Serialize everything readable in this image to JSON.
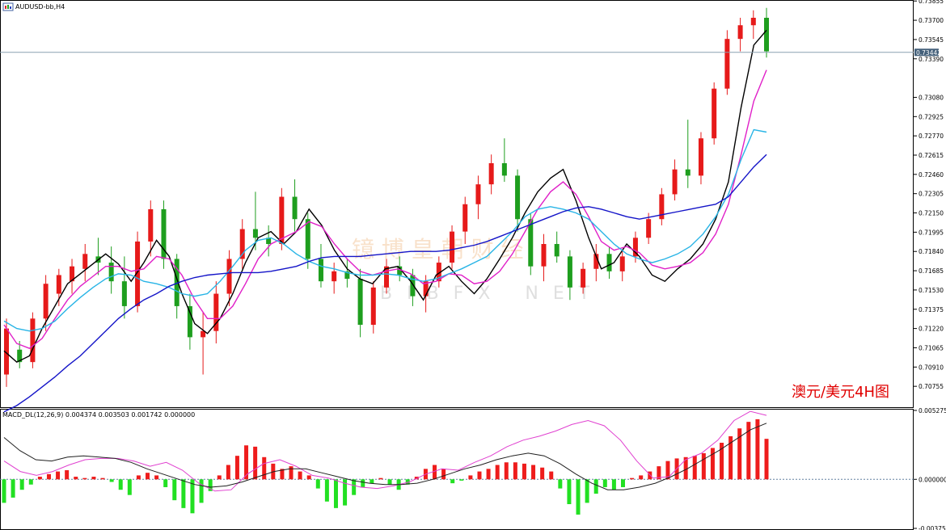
{
  "window": {
    "title": "AUDUSD-bb,H4"
  },
  "macd": {
    "title": "MACD_DL(12,26,9) 0.004374 0.003503 0.001742 0.000000"
  },
  "annotation": "澳元/美元4H图",
  "watermark": {
    "cn": "镱 博 皇 朝 财 经",
    "en": "BIBFX NET"
  },
  "price_marker": {
    "label": "0.73442",
    "value": 0.73442
  },
  "colors": {
    "bull": "#e61a1a",
    "bear": "#1e9e1e",
    "black_ma": "#000000",
    "magenta_ma": "#e020c8",
    "cyan_ma": "#28b4e6",
    "blue_ma": "#1414c8",
    "hist_pos": "#ee1c1c",
    "hist_neg": "#22e022",
    "signal": "#e040d0",
    "macd_line": "#202020"
  },
  "chart_data": [
    {
      "type": "candlestick",
      "title": "AUDUSD-bb,H4",
      "ylim": [
        0.706,
        0.7385
      ],
      "yticks": [
        "0.73855",
        "0.73700",
        "0.73545",
        "0.73390",
        "0.73080",
        "0.72925",
        "0.72770",
        "0.72615",
        "0.72460",
        "0.72305",
        "0.72150",
        "0.71995",
        "0.71840",
        "0.71685",
        "0.71530",
        "0.71375",
        "0.71220",
        "0.71065",
        "0.70910",
        "0.70755"
      ],
      "series": [
        {
          "name": "black",
          "values": [
            0.7104,
            0.7095,
            0.71,
            0.7122,
            0.714,
            0.7158,
            0.7166,
            0.7174,
            0.7182,
            0.7174,
            0.716,
            0.7175,
            0.7193,
            0.718,
            0.715,
            0.7126,
            0.7118,
            0.713,
            0.715,
            0.7175,
            0.7195,
            0.72,
            0.719,
            0.72,
            0.7218,
            0.7205,
            0.7185,
            0.717,
            0.7162,
            0.7158,
            0.717,
            0.7172,
            0.716,
            0.7145,
            0.7165,
            0.7172,
            0.716,
            0.715,
            0.7162,
            0.7178,
            0.7195,
            0.7215,
            0.7232,
            0.7243,
            0.725,
            0.7225,
            0.7195,
            0.717,
            0.7175,
            0.719,
            0.718,
            0.7165,
            0.716,
            0.717,
            0.7178,
            0.719,
            0.721,
            0.724,
            0.73,
            0.735,
            0.7362
          ]
        },
        {
          "name": "magenta",
          "values": [
            0.7125,
            0.711,
            0.7106,
            0.7114,
            0.713,
            0.7145,
            0.7156,
            0.7164,
            0.7172,
            0.7172,
            0.7168,
            0.717,
            0.718,
            0.7178,
            0.7165,
            0.7145,
            0.713,
            0.713,
            0.714,
            0.7158,
            0.7178,
            0.719,
            0.7195,
            0.72,
            0.7208,
            0.7204,
            0.719,
            0.7178,
            0.7168,
            0.7165,
            0.7168,
            0.717,
            0.7166,
            0.7158,
            0.716,
            0.7166,
            0.7165,
            0.7158,
            0.716,
            0.7168,
            0.7182,
            0.72,
            0.7218,
            0.7232,
            0.724,
            0.723,
            0.7212,
            0.7192,
            0.7185,
            0.7188,
            0.7183,
            0.7173,
            0.717,
            0.7172,
            0.7175,
            0.7183,
            0.7198,
            0.7222,
            0.7262,
            0.7305,
            0.733
          ]
        },
        {
          "name": "cyan",
          "values": [
            0.7128,
            0.7122,
            0.712,
            0.7122,
            0.7128,
            0.7138,
            0.7147,
            0.7155,
            0.7162,
            0.7166,
            0.7165,
            0.716,
            0.7158,
            0.7155,
            0.715,
            0.7148,
            0.715,
            0.716,
            0.7172,
            0.7185,
            0.7193,
            0.7195,
            0.719,
            0.7182,
            0.7176,
            0.7172,
            0.717,
            0.7167,
            0.7165,
            0.7165,
            0.7166,
            0.7165,
            0.7162,
            0.716,
            0.7162,
            0.7166,
            0.717,
            0.7175,
            0.718,
            0.719,
            0.72,
            0.7212,
            0.7218,
            0.722,
            0.7218,
            0.7215,
            0.721,
            0.72,
            0.719,
            0.7182,
            0.7178,
            0.7175,
            0.7178,
            0.7182,
            0.7188,
            0.7198,
            0.7212,
            0.723,
            0.7258,
            0.7282,
            0.728
          ]
        },
        {
          "name": "blue",
          "values": [
            0.7055,
            0.706,
            0.7067,
            0.7075,
            0.7083,
            0.7092,
            0.71,
            0.711,
            0.712,
            0.713,
            0.7138,
            0.7145,
            0.715,
            0.7156,
            0.716,
            0.7163,
            0.7165,
            0.7166,
            0.7167,
            0.7167,
            0.7167,
            0.7168,
            0.717,
            0.7172,
            0.7176,
            0.7179,
            0.718,
            0.718,
            0.718,
            0.7181,
            0.7182,
            0.7183,
            0.7184,
            0.7184,
            0.7184,
            0.7185,
            0.7187,
            0.7189,
            0.7192,
            0.7196,
            0.72,
            0.7204,
            0.7208,
            0.7212,
            0.7216,
            0.7219,
            0.722,
            0.7218,
            0.7215,
            0.7212,
            0.721,
            0.7212,
            0.7214,
            0.7216,
            0.7218,
            0.722,
            0.7222,
            0.7228,
            0.724,
            0.7252,
            0.7262
          ]
        }
      ],
      "ohlc_sampled": [
        [
          0.7085,
          0.713,
          0.7075,
          0.7122
        ],
        [
          0.7105,
          0.7112,
          0.709,
          0.7095
        ],
        [
          0.7095,
          0.7135,
          0.709,
          0.713
        ],
        [
          0.713,
          0.7165,
          0.712,
          0.7158
        ],
        [
          0.715,
          0.717,
          0.714,
          0.7165
        ],
        [
          0.716,
          0.7178,
          0.715,
          0.7172
        ],
        [
          0.717,
          0.719,
          0.716,
          0.7182
        ],
        [
          0.718,
          0.7195,
          0.7165,
          0.7175
        ],
        [
          0.7175,
          0.7188,
          0.715,
          0.716
        ],
        [
          0.716,
          0.718,
          0.713,
          0.714
        ],
        [
          0.714,
          0.72,
          0.7135,
          0.7192
        ],
        [
          0.7192,
          0.7225,
          0.718,
          0.7218
        ],
        [
          0.7218,
          0.7225,
          0.717,
          0.7178
        ],
        [
          0.7178,
          0.7182,
          0.713,
          0.714
        ],
        [
          0.714,
          0.715,
          0.7105,
          0.7115
        ],
        [
          0.7115,
          0.7135,
          0.7085,
          0.712
        ],
        [
          0.712,
          0.716,
          0.711,
          0.715
        ],
        [
          0.715,
          0.7185,
          0.714,
          0.7178
        ],
        [
          0.7178,
          0.721,
          0.717,
          0.7202
        ],
        [
          0.7202,
          0.7232,
          0.7185,
          0.7195
        ],
        [
          0.7195,
          0.7205,
          0.718,
          0.719
        ],
        [
          0.719,
          0.7235,
          0.7185,
          0.7228
        ],
        [
          0.7228,
          0.7242,
          0.72,
          0.721
        ],
        [
          0.721,
          0.7215,
          0.717,
          0.7178
        ],
        [
          0.7178,
          0.719,
          0.7155,
          0.716
        ],
        [
          0.716,
          0.7175,
          0.715,
          0.7168
        ],
        [
          0.7168,
          0.7178,
          0.7155,
          0.7162
        ],
        [
          0.7162,
          0.717,
          0.7115,
          0.7125
        ],
        [
          0.7125,
          0.716,
          0.7118,
          0.7155
        ],
        [
          0.7155,
          0.7178,
          0.715,
          0.7172
        ],
        [
          0.7172,
          0.718,
          0.716,
          0.7165
        ],
        [
          0.7165,
          0.717,
          0.714,
          0.7148
        ],
        [
          0.7148,
          0.7165,
          0.7135,
          0.716
        ],
        [
          0.716,
          0.718,
          0.7155,
          0.7175
        ],
        [
          0.7175,
          0.7205,
          0.717,
          0.72
        ],
        [
          0.72,
          0.7228,
          0.719,
          0.7222
        ],
        [
          0.7222,
          0.7245,
          0.721,
          0.7238
        ],
        [
          0.7238,
          0.7262,
          0.723,
          0.7255
        ],
        [
          0.7255,
          0.7275,
          0.724,
          0.7245
        ],
        [
          0.7245,
          0.725,
          0.72,
          0.721
        ],
        [
          0.721,
          0.7215,
          0.7165,
          0.7172
        ],
        [
          0.7172,
          0.7198,
          0.716,
          0.719
        ],
        [
          0.719,
          0.72,
          0.7175,
          0.718
        ],
        [
          0.718,
          0.7185,
          0.7145,
          0.7155
        ],
        [
          0.7155,
          0.7175,
          0.715,
          0.717
        ],
        [
          0.717,
          0.719,
          0.716,
          0.7182
        ],
        [
          0.7182,
          0.7188,
          0.7162,
          0.7168
        ],
        [
          0.7168,
          0.7185,
          0.716,
          0.718
        ],
        [
          0.718,
          0.72,
          0.7175,
          0.7195
        ],
        [
          0.7195,
          0.7215,
          0.719,
          0.721
        ],
        [
          0.721,
          0.7235,
          0.7205,
          0.723
        ],
        [
          0.723,
          0.7258,
          0.7225,
          0.725
        ],
        [
          0.725,
          0.729,
          0.7235,
          0.7245
        ],
        [
          0.7245,
          0.728,
          0.7238,
          0.7275
        ],
        [
          0.7275,
          0.732,
          0.727,
          0.7315
        ],
        [
          0.7315,
          0.7362,
          0.731,
          0.7355
        ],
        [
          0.7355,
          0.7372,
          0.7345,
          0.7366
        ],
        [
          0.7366,
          0.7378,
          0.7355,
          0.7372
        ],
        [
          0.7372,
          0.738,
          0.734,
          0.7345
        ]
      ]
    },
    {
      "type": "bar",
      "title": "MACD_DL(12,26,9) 0.004374 0.003503 0.001742 0.000000",
      "ylim": [
        -0.003756,
        0.005275
      ],
      "yticks": [
        "0.005275",
        "0.000000",
        "-0.003756"
      ],
      "histogram": [
        -0.0018,
        -0.0014,
        -0.0008,
        -0.0004,
        0.0002,
        0.0004,
        0.0006,
        0.0007,
        0.0002,
        0.0001,
        0.0002,
        0.0001,
        -0.0002,
        -0.0008,
        -0.0012,
        0.0003,
        0.0005,
        0.0003,
        -0.0006,
        -0.0016,
        -0.0022,
        -0.0026,
        -0.0018,
        -0.0009,
        0.0003,
        0.0011,
        0.0018,
        0.0026,
        0.0025,
        0.0017,
        0.0012,
        0.0008,
        0.001,
        0.0006,
        0.0003,
        -0.0007,
        -0.0017,
        -0.0022,
        -0.002,
        -0.0012,
        -0.0006,
        -0.0003,
        0.0001,
        -0.0004,
        -0.0008,
        -0.0004,
        0.0002,
        0.0008,
        0.0011,
        0.0008,
        -0.0003,
        -0.0001,
        0.0003,
        0.0006,
        0.0008,
        0.0011,
        0.0013,
        0.0013,
        0.0012,
        0.0011,
        0.0009,
        0.0006,
        -0.0007,
        -0.0019,
        -0.0027,
        -0.0018,
        -0.0011,
        -0.0006,
        -0.0008,
        -0.0006,
        0.0001,
        0.0003,
        0.0006,
        0.001,
        0.0014,
        0.0016,
        0.0017,
        0.0018,
        0.002,
        0.0024,
        0.0028,
        0.0033,
        0.0039,
        0.0044,
        0.0046,
        0.0031
      ],
      "signal_line": [
        0.0014,
        0.0006,
        0.0003,
        0.0006,
        0.0011,
        0.0015,
        0.0016,
        0.0016,
        0.0014,
        0.001,
        0.0013,
        0.0007,
        -0.0003,
        -0.0009,
        -0.0008,
        0.0004,
        0.0012,
        0.0015,
        0.001,
        0.0003,
        0.0001,
        -0.0003,
        -0.0006,
        -0.0007,
        -0.0005,
        -0.0002,
        0.0004,
        0.0008,
        0.0007,
        0.0013,
        0.0018,
        0.0025,
        0.003,
        0.0033,
        0.0037,
        0.0042,
        0.0045,
        0.0041,
        0.003,
        0.0014,
        0.0001,
        0.0002,
        0.0015,
        0.002,
        0.003,
        0.0045,
        0.0052,
        0.0049
      ],
      "macd_line": [
        0.0032,
        0.0022,
        0.0015,
        0.0014,
        0.0017,
        0.0018,
        0.0017,
        0.0016,
        0.0013,
        0.0008,
        0.0004,
        0.0,
        -0.0004,
        -0.0006,
        -0.0005,
        -0.0002,
        0.0002,
        0.0006,
        0.0008,
        0.0008,
        0.0005,
        0.0002,
        -0.0001,
        -0.0003,
        -0.0004,
        -0.0004,
        -0.0003,
        0.0,
        0.0004,
        0.0008,
        0.0011,
        0.0015,
        0.0018,
        0.002,
        0.0018,
        0.0012,
        0.0004,
        -0.0003,
        -0.0008,
        -0.0008,
        -0.0006,
        -0.0003,
        0.0002,
        0.0008,
        0.0015,
        0.0022,
        0.003,
        0.0038,
        0.0043
      ]
    }
  ]
}
